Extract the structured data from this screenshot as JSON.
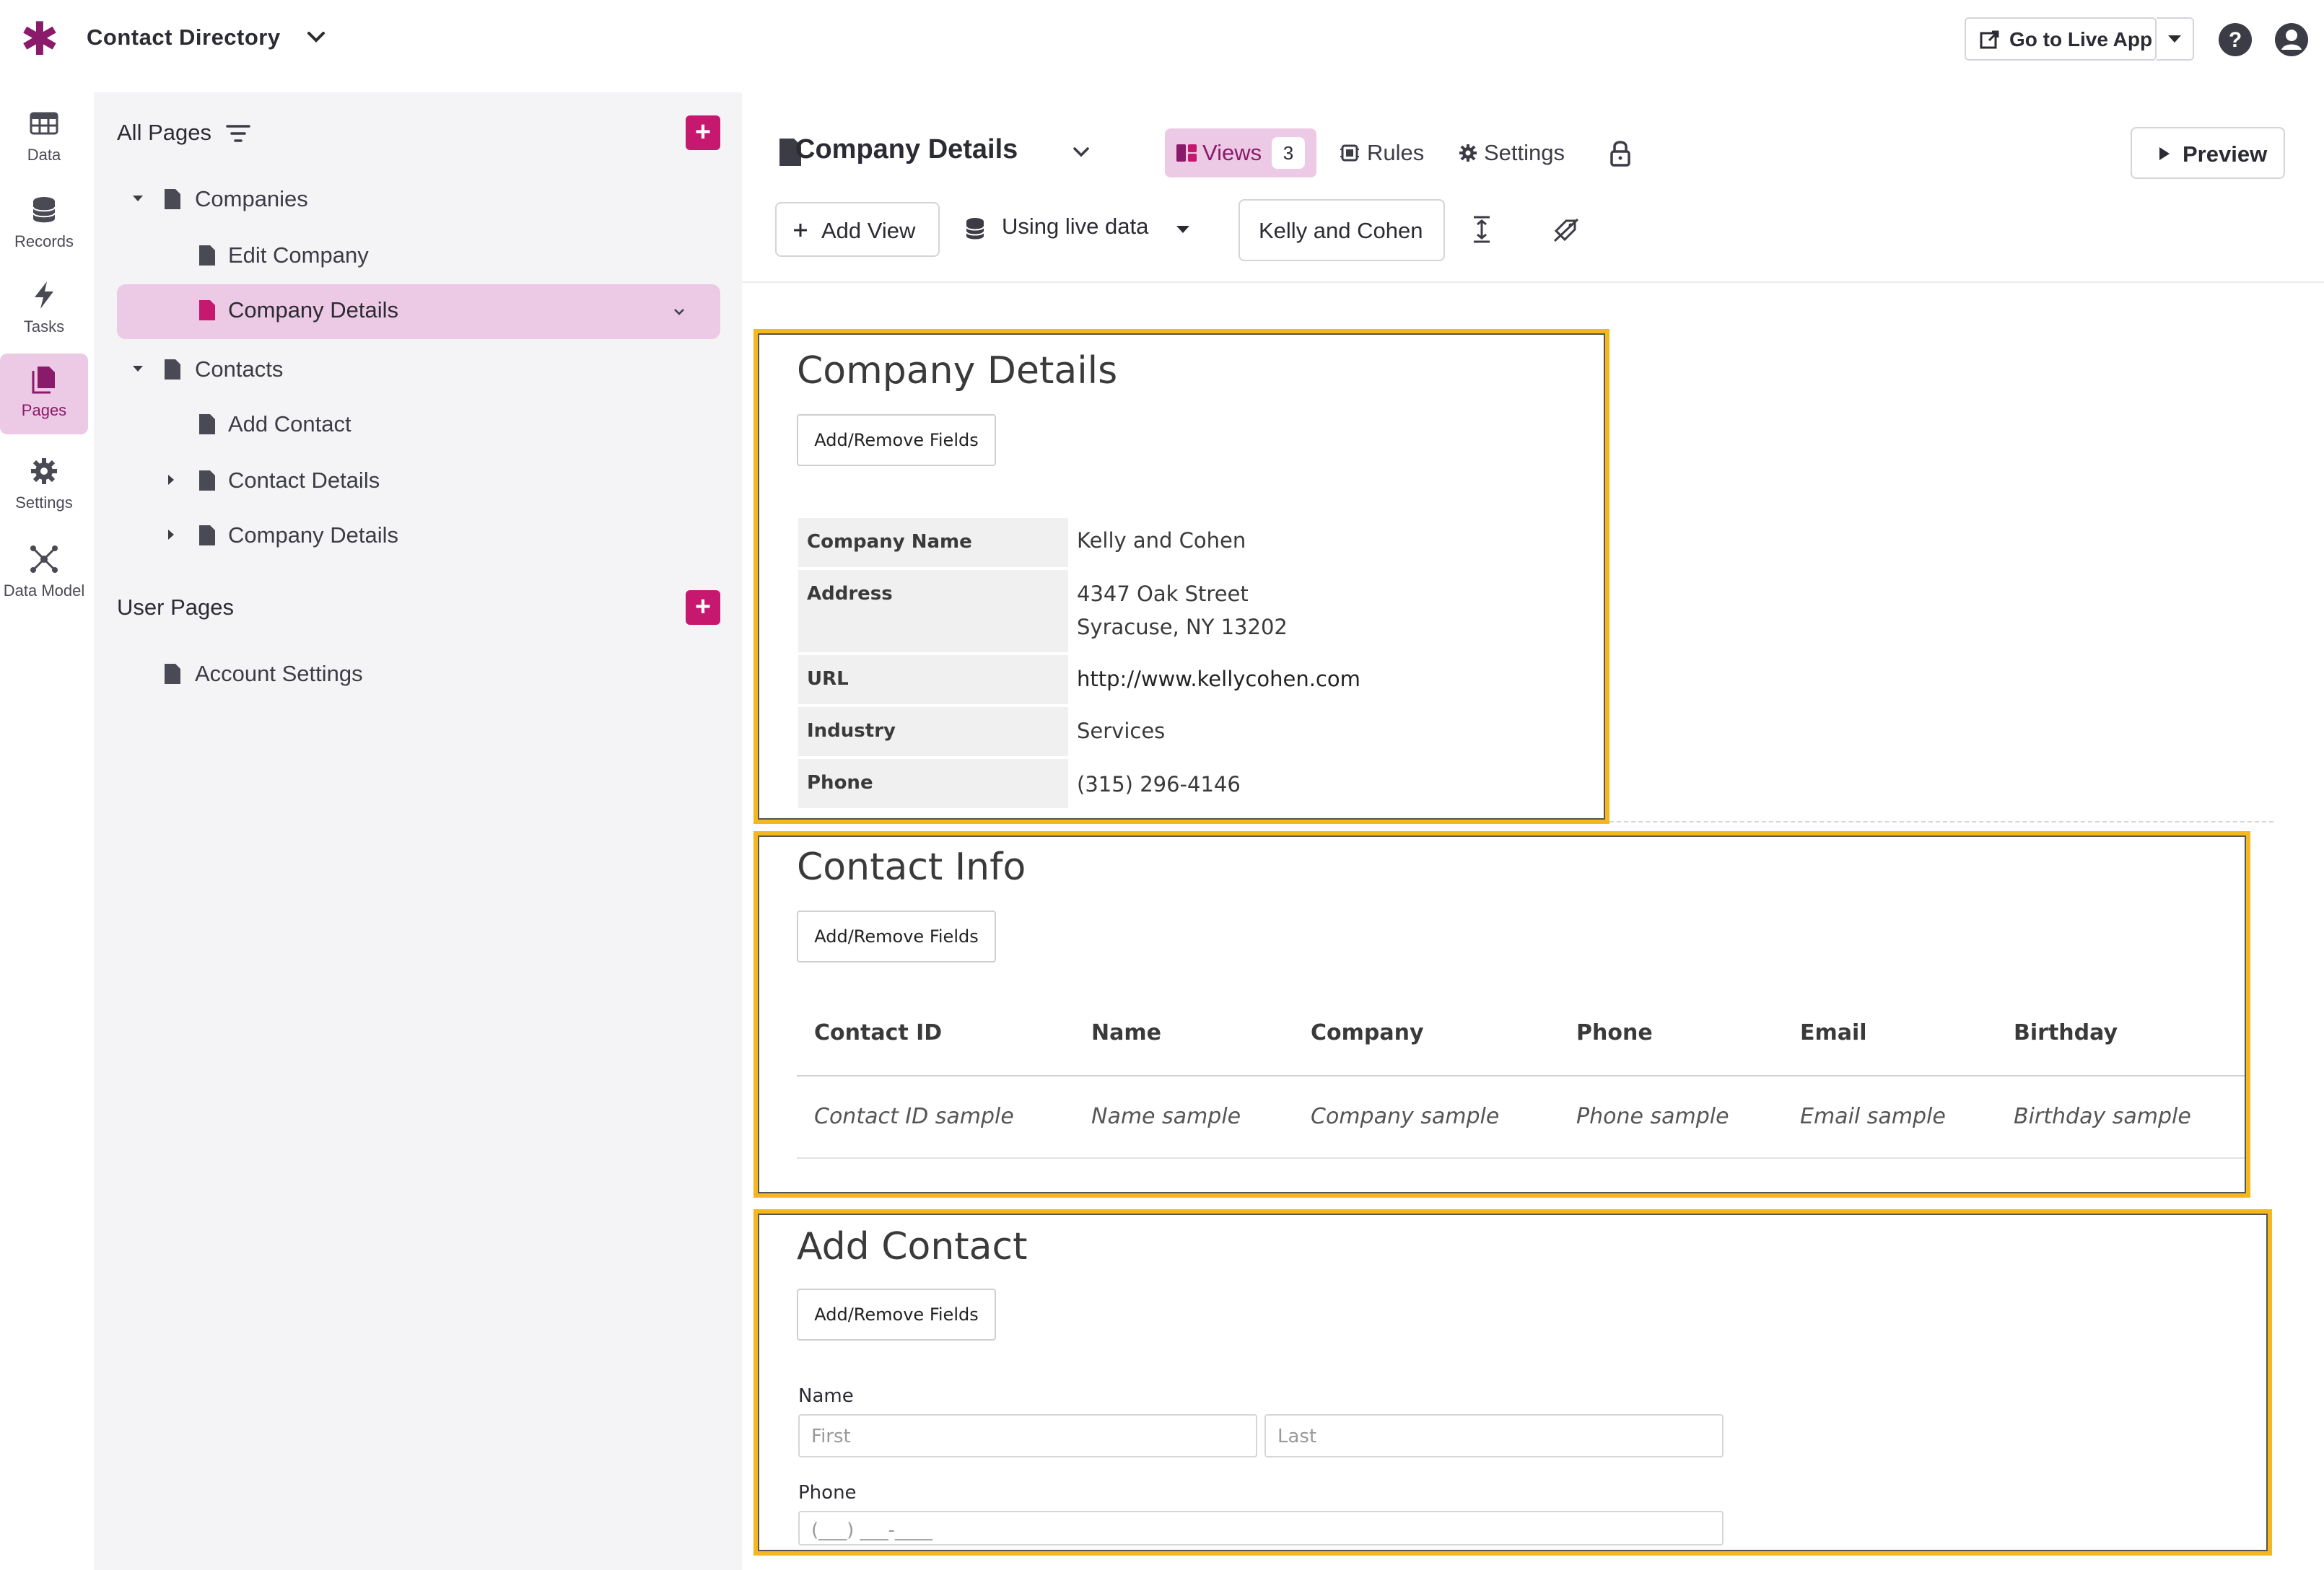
{
  "app": {
    "title": "Contact Directory"
  },
  "topbar": {
    "live_app_label": "Go to Live App"
  },
  "rail": [
    {
      "label": "Data",
      "icon": "table-icon"
    },
    {
      "label": "Records",
      "icon": "database-icon"
    },
    {
      "label": "Tasks",
      "icon": "bolt-icon"
    },
    {
      "label": "Pages",
      "icon": "pages-icon",
      "active": true
    },
    {
      "label": "Settings",
      "icon": "gear-icon"
    },
    {
      "label": "Data Model",
      "icon": "network-icon"
    }
  ],
  "sidebar": {
    "all_pages_title": "All Pages",
    "user_pages_title": "User Pages",
    "tree": [
      {
        "label": "Companies"
      },
      {
        "label": "Edit Company"
      },
      {
        "label": "Company Details",
        "selected": true
      },
      {
        "label": "Contacts"
      },
      {
        "label": "Add Contact"
      },
      {
        "label": "Contact Details"
      },
      {
        "label": "Company Details"
      }
    ],
    "user_pages": [
      {
        "label": "Account Settings"
      }
    ]
  },
  "header": {
    "page_title": "Company Details",
    "tabs": {
      "views": "Views",
      "views_count": "3",
      "rules": "Rules",
      "settings": "Settings"
    },
    "preview_label": "Preview",
    "add_view_label": "Add View",
    "live_data_label": "Using live data",
    "record_label": "Kelly and Cohen"
  },
  "views": {
    "details": {
      "title": "Company Details",
      "button": "Add/Remove Fields",
      "rows": [
        {
          "label": "Company Name",
          "value": "Kelly and Cohen"
        },
        {
          "label": "Address",
          "value": "4347 Oak Street",
          "value2": "Syracuse, NY 13202"
        },
        {
          "label": "URL",
          "value": "http://www.kellycohen.com"
        },
        {
          "label": "Industry",
          "value": "Services"
        },
        {
          "label": "Phone",
          "value": "(315) 296-4146"
        }
      ]
    },
    "contacts": {
      "title": "Contact Info",
      "button": "Add/Remove Fields",
      "columns": [
        "Contact ID",
        "Name",
        "Company",
        "Phone",
        "Email",
        "Birthday"
      ],
      "samples": [
        "Contact ID sample",
        "Name sample",
        "Company sample",
        "Phone sample",
        "Email sample",
        "Birthday sample"
      ]
    },
    "form": {
      "title": "Add Contact",
      "button": "Add/Remove Fields",
      "name_label": "Name",
      "first_placeholder": "First",
      "last_placeholder": "Last",
      "phone_label": "Phone",
      "phone_placeholder": "(___) ___-____"
    }
  }
}
